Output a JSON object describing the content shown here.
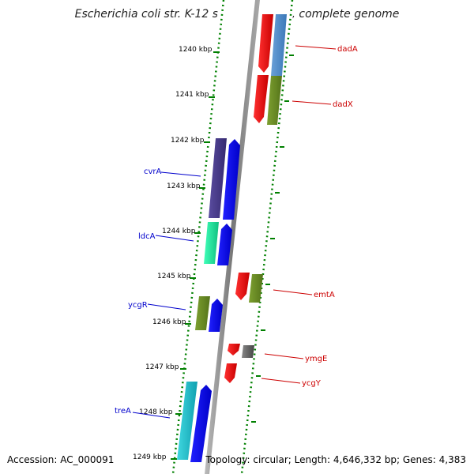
{
  "title": "Escherichia coli str. K-12 substr. W3110, complete genome",
  "footer": {
    "accession": "Accession: AC_000091",
    "summary": "Topology: circular; Length: 4,646,332 bp; Genes: 4,383"
  },
  "ticks": [
    {
      "label": "1240 kbp"
    },
    {
      "label": "1241 kbp"
    },
    {
      "label": "1242 kbp"
    },
    {
      "label": "1243 kbp"
    },
    {
      "label": "1244 kbp"
    },
    {
      "label": "1245 kbp"
    },
    {
      "label": "1246 kbp"
    },
    {
      "label": "1247 kbp"
    },
    {
      "label": "1248 kbp"
    },
    {
      "label": "1249 kbp"
    }
  ],
  "genes": [
    {
      "name": "dadA",
      "strand": "reverse",
      "color": "#e00000"
    },
    {
      "name": "dadX",
      "strand": "reverse",
      "color": "#e00000"
    },
    {
      "name": "cvrA",
      "strand": "forward",
      "color": "#0000dd"
    },
    {
      "name": "ldcA",
      "strand": "forward",
      "color": "#0000dd"
    },
    {
      "name": "emtA",
      "strand": "reverse",
      "color": "#e00000"
    },
    {
      "name": "ycgR",
      "strand": "forward",
      "color": "#0000dd"
    },
    {
      "name": "ymgE",
      "strand": "reverse",
      "color": "#e00000"
    },
    {
      "name": "ycgY",
      "strand": "reverse",
      "color": "#e00000"
    },
    {
      "name": "treA",
      "strand": "forward",
      "color": "#0000dd"
    }
  ],
  "colors": {
    "forward_label": "#0000cc",
    "reverse_label": "#cc0000",
    "backbone": "#888888",
    "dotted_ring": "#008000",
    "cog_blue": "#4a8fd0",
    "cog_olive": "#6b8e23",
    "cog_purple": "#4b3d8c",
    "cog_teal": "#1de9a0",
    "cog_cyan": "#20c0c8",
    "cog_gray": "#666666"
  }
}
